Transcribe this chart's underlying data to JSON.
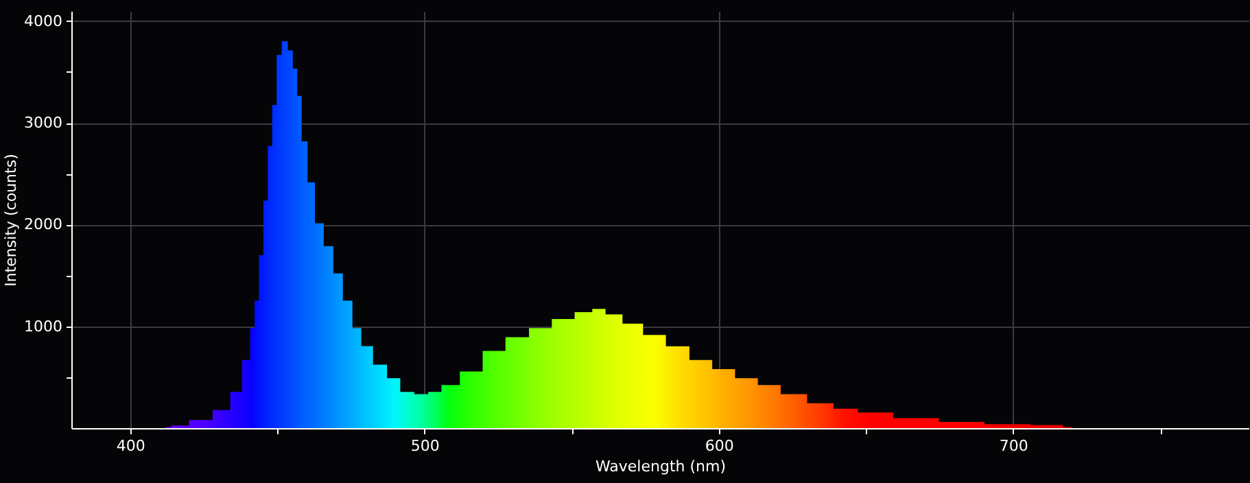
{
  "chart_data": {
    "type": "area",
    "xlabel": "Wavelength (nm)",
    "ylabel": "Intensity (counts)",
    "xlim": [
      380,
      780
    ],
    "ylim": [
      0,
      4100
    ],
    "xticks": [
      400,
      {
        "value": 450,
        "label": null
      },
      500,
      {
        "value": 550,
        "label": null
      },
      600,
      {
        "value": 650,
        "label": null
      },
      700,
      {
        "value": 750,
        "label": null
      }
    ],
    "yticks": [
      {
        "value": 500,
        "label": null
      },
      1000,
      {
        "value": 1500,
        "label": null
      },
      2000,
      {
        "value": 2500,
        "label": null
      },
      3000,
      {
        "value": 3500,
        "label": null
      },
      4000
    ],
    "grid": true,
    "x": [
      412,
      416,
      424,
      432,
      436,
      440,
      441.5,
      443,
      444.5,
      446,
      447.5,
      449,
      450.5,
      452.5,
      454.5,
      456,
      457.5,
      459,
      461.5,
      464,
      467.5,
      470.5,
      474,
      477,
      480,
      485,
      489.5,
      494,
      499,
      503.5,
      508,
      516,
      523.5,
      531.5,
      539.5,
      547,
      555,
      559,
      564,
      570.5,
      578,
      586,
      594,
      601.5,
      609.5,
      617,
      625,
      635,
      643,
      651.5,
      667,
      682.5,
      698,
      714,
      720
    ],
    "series": [
      {
        "values": [
          10,
          25,
          80,
          177,
          356,
          670,
          983,
          1252,
          1700,
          2236,
          2773,
          3176,
          3669,
          3803,
          3713,
          3534,
          3266,
          2819,
          2416,
          2013,
          1789,
          1520,
          1252,
          983,
          805,
          624,
          490,
          356,
          334,
          356,
          423,
          557,
          759,
          893,
          983,
          1073,
          1140,
          1171,
          1117,
          1027,
          916,
          804,
          670,
          580,
          490,
          423,
          334,
          244,
          190,
          154,
          97,
          60,
          39,
          30,
          10
        ],
        "colors": [
          "#6a00ff",
          "#6000ff",
          "#5000ff",
          "#3000ff",
          "#2000ff",
          "#1000ff",
          "#0800ff",
          "#0010ff",
          "#0018ff",
          "#0020ff",
          "#0028ff",
          "#0030ff",
          "#0038ff",
          "#0040ff",
          "#0048ff",
          "#0050ff",
          "#0058ff",
          "#0060ff",
          "#0068ff",
          "#0074ff",
          "#0084ff",
          "#0094ff",
          "#00a4ff",
          "#00b4ff",
          "#00c4ff",
          "#00dcff",
          "#00f4ff",
          "#00ffd0",
          "#00ffa0",
          "#00ff60",
          "#00ff10",
          "#30ff00",
          "#50ff00",
          "#70ff00",
          "#90ff00",
          "#a8ff00",
          "#c0ff00",
          "#ccff00",
          "#dcff00",
          "#ecff00",
          "#fcff00",
          "#ffe000",
          "#ffc800",
          "#ffb000",
          "#ff9800",
          "#ff8000",
          "#ff6000",
          "#ff3800",
          "#ff1000",
          "#ff0000",
          "#ff0000",
          "#ff0000",
          "#f00000",
          "#e80000",
          "#e00000"
        ]
      }
    ]
  }
}
